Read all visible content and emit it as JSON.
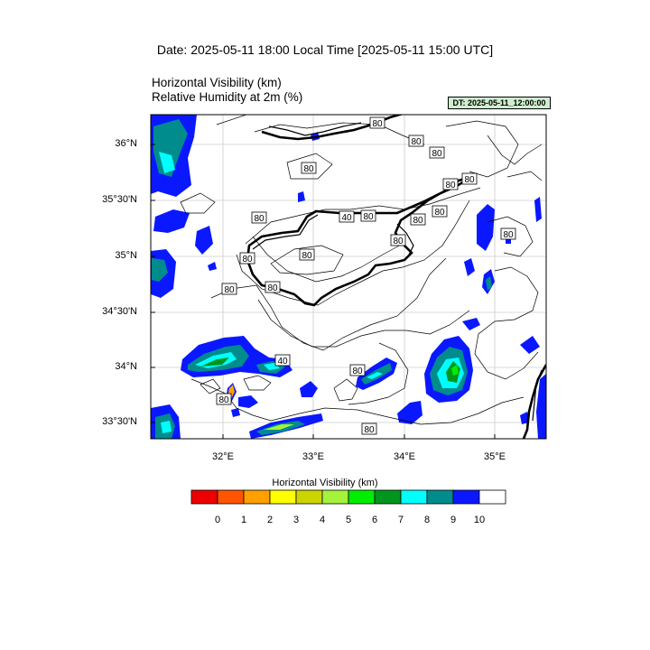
{
  "header": {
    "date_title": "Date: 2025-05-11  18:00 Local Time [2025-05-11  15:00 UTC]",
    "variable_1": "Horizontal Visibility   (km)",
    "variable_2": "Relative Humidity at 2m   (%)",
    "dt_badge": "DT: 2025-05-11_12:00:00"
  },
  "map": {
    "latitude_labels": [
      "36°N",
      "35°30'N",
      "35°N",
      "34°30'N",
      "34°N",
      "33°30'N"
    ],
    "longitude_labels": [
      "32°E",
      "33°E",
      "34°E",
      "35°E"
    ],
    "contour_labels": [
      "80",
      "80",
      "80",
      "80",
      "80",
      "80",
      "80",
      "80",
      "80",
      "40",
      "80",
      "80",
      "80",
      "80",
      "80",
      "80",
      "80",
      "40",
      "80",
      "80",
      "80"
    ],
    "land_outline_color": "#000000",
    "grid_color": "#cccccc"
  },
  "legend": {
    "title": "Horizontal Visibility  (km)",
    "colors": [
      "#ee0000",
      "#ff5500",
      "#ff9f00",
      "#ffff00",
      "#ccd400",
      "#a5f23c",
      "#00ee00",
      "#00961e",
      "#00ffff",
      "#008c8c",
      "#0a18ff",
      "#ffffff"
    ],
    "tick_labels": [
      "0",
      "1",
      "2",
      "3",
      "4",
      "5",
      "6",
      "7",
      "8",
      "9",
      "10"
    ]
  }
}
